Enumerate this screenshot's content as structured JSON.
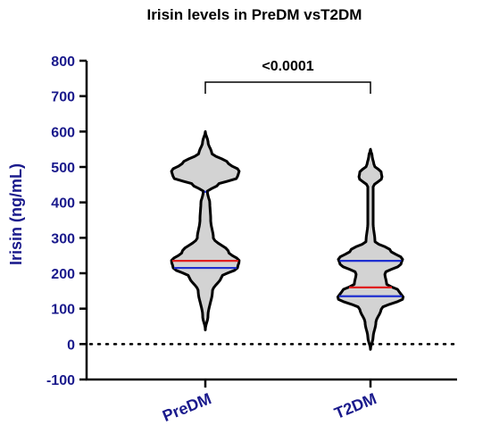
{
  "chart_data": {
    "type": "violin",
    "title": "Irisin levels in PreDM vsT2DM",
    "xlabel": "",
    "ylabel": "Irisin (ng/mL)",
    "ylim": [
      -100,
      800
    ],
    "yticks": [
      "-100",
      "0",
      "100",
      "200",
      "300",
      "400",
      "500",
      "600",
      "700",
      "800"
    ],
    "categories": [
      "PreDM",
      "T2DM"
    ],
    "reference_line": {
      "y": 0,
      "style": "dotted"
    },
    "significance": {
      "between": [
        "PreDM",
        "T2DM"
      ],
      "label": "<0.0001"
    },
    "fill_color": "#d3d3d3",
    "outline_color": "#000000",
    "violins": [
      {
        "category": "PreDM",
        "min": 40,
        "max": 600,
        "median": 235,
        "q1": 215,
        "q3": 430,
        "median_color": "#e02020",
        "quartile_color": "#1f2fd0",
        "profile": [
          [
            40,
            0
          ],
          [
            80,
            3
          ],
          [
            150,
            8
          ],
          [
            190,
            18
          ],
          [
            215,
            36
          ],
          [
            235,
            38
          ],
          [
            260,
            26
          ],
          [
            300,
            9
          ],
          [
            350,
            6
          ],
          [
            400,
            5
          ],
          [
            420,
            3
          ],
          [
            430,
            2
          ],
          [
            450,
            14
          ],
          [
            470,
            36
          ],
          [
            490,
            38
          ],
          [
            510,
            26
          ],
          [
            540,
            7
          ],
          [
            570,
            3
          ],
          [
            600,
            0
          ]
        ]
      },
      {
        "category": "T2DM",
        "min": -15,
        "max": 550,
        "median": 160,
        "q1": 135,
        "q3": 235,
        "median_color": "#e02020",
        "quartile_color": "#1f2fd0",
        "profile": [
          [
            -15,
            0
          ],
          [
            20,
            3
          ],
          [
            60,
            6
          ],
          [
            100,
            12
          ],
          [
            130,
            37
          ],
          [
            150,
            32
          ],
          [
            170,
            18
          ],
          [
            200,
            16
          ],
          [
            225,
            34
          ],
          [
            240,
            36
          ],
          [
            265,
            22
          ],
          [
            290,
            5
          ],
          [
            340,
            3
          ],
          [
            400,
            3
          ],
          [
            445,
            3
          ],
          [
            470,
            13
          ],
          [
            485,
            12
          ],
          [
            505,
            4
          ],
          [
            530,
            2
          ],
          [
            550,
            0
          ]
        ]
      }
    ]
  },
  "colors": {
    "tick_label": "#1a1a8c",
    "axis": "#000000"
  }
}
